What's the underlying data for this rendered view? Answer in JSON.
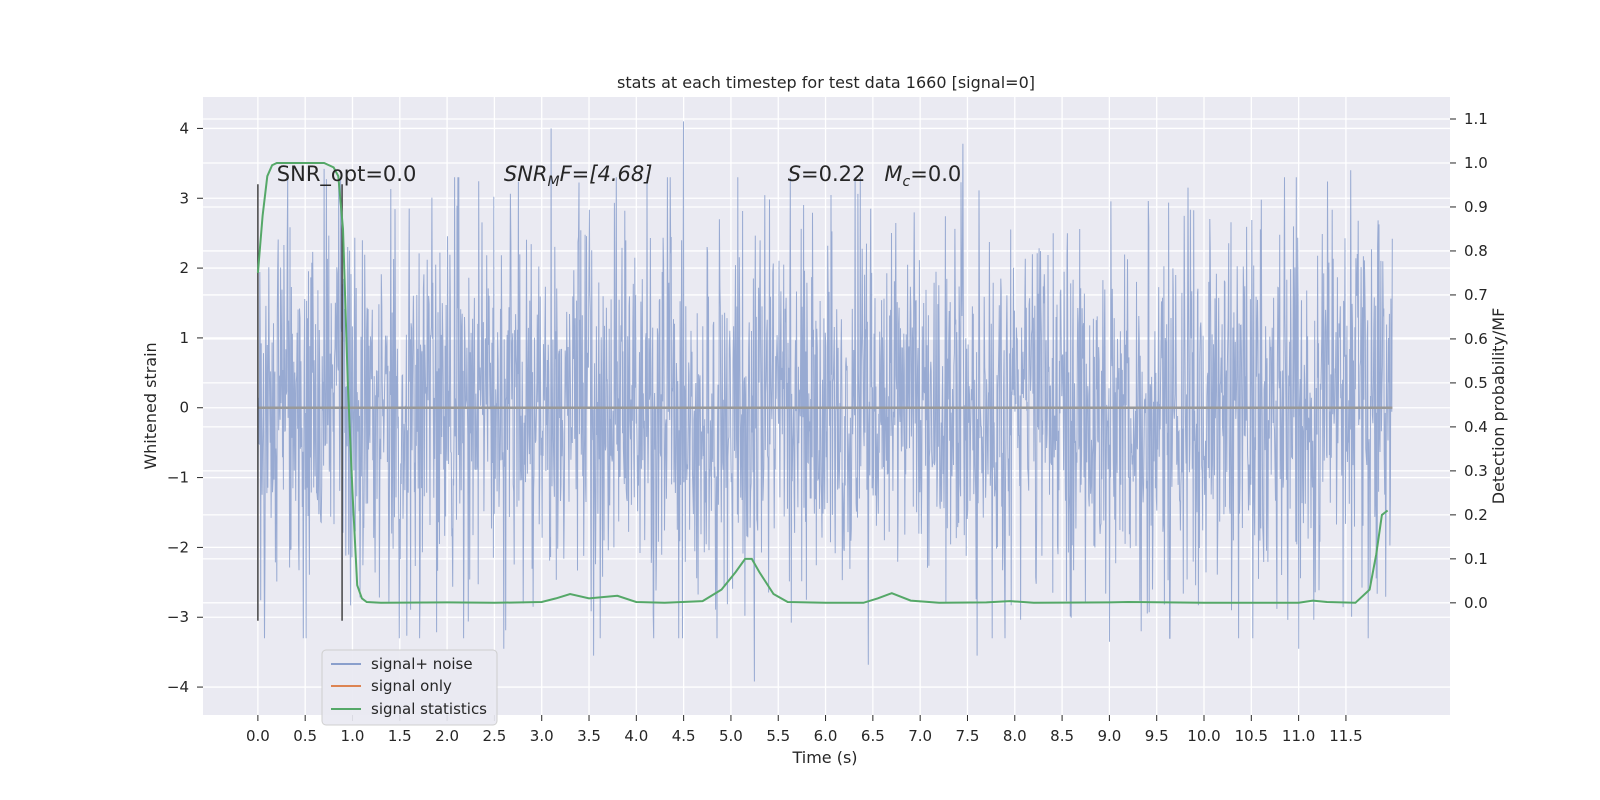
{
  "chart_data": {
    "type": "line",
    "title": "stats at each timestep for test data 1660 [signal=0]",
    "xlabel": "Time (s)",
    "ylabel": "Whitened strain",
    "y2label": "Detection probability/MF",
    "xlim": [
      -0.58,
      12.6
    ],
    "ylim": [
      -4.4,
      4.45
    ],
    "y2lim": [
      -0.255,
      1.15
    ],
    "grid": true,
    "legend_position": "lower-left",
    "xticks": [
      "0.0",
      "0.5",
      "1.0",
      "1.5",
      "2.0",
      "2.5",
      "3.0",
      "3.5",
      "4.0",
      "4.5",
      "5.0",
      "5.5",
      "6.0",
      "6.5",
      "7.0",
      "7.5",
      "8.0",
      "8.5",
      "9.0",
      "9.5",
      "10.0",
      "10.5",
      "11.0",
      "11.5"
    ],
    "yticks": [
      "−4",
      "−3",
      "−2",
      "−1",
      "0",
      "1",
      "2",
      "3",
      "4"
    ],
    "y2ticks": [
      "0.0",
      "0.1",
      "0.2",
      "0.3",
      "0.4",
      "0.5",
      "0.6",
      "0.7",
      "0.8",
      "0.9",
      "1.0",
      "1.1"
    ],
    "annotations": {
      "snr_opt": {
        "prefix": "SNR_opt=0.0",
        "x": 0.2,
        "y": 3.25
      },
      "snr_mf": {
        "var": "SNR",
        "sub": "M",
        "rest": "F=[4.68]",
        "x": 2.6,
        "y": 3.25
      },
      "s_mc": {
        "s_var": "S",
        "s_val": "=0.22",
        "m_var": "M",
        "m_sub": "c",
        "m_val": "=0.0",
        "x": 5.6,
        "y": 3.25
      }
    },
    "markers": {
      "vlines_x": [
        0.0,
        0.89
      ],
      "ymin": -3.05,
      "ymax": 3.2
    },
    "series": [
      {
        "name": "signal+ noise",
        "color": "#8a9fcc",
        "axis": "left",
        "t_range": [
          0.0,
          11.99
        ],
        "envelope_typical": 2.4,
        "peaks": [
          {
            "t": 3.1,
            "v": 4.0
          },
          {
            "t": 4.5,
            "v": 4.1
          },
          {
            "t": 7.45,
            "v": 3.78
          },
          {
            "t": 0.7,
            "v": 3.42
          },
          {
            "t": 11.55,
            "v": 3.4
          },
          {
            "t": 10.85,
            "v": 3.3
          },
          {
            "t": 5.25,
            "v": -3.92
          },
          {
            "t": 6.45,
            "v": -3.68
          },
          {
            "t": 3.55,
            "v": -3.55
          },
          {
            "t": 11.0,
            "v": -3.45
          },
          {
            "t": 0.48,
            "v": -3.3
          },
          {
            "t": 2.6,
            "v": -3.45
          },
          {
            "t": 9.0,
            "v": -3.35
          },
          {
            "t": 7.6,
            "v": -3.55
          }
        ]
      },
      {
        "name": "signal only",
        "color": "#dd8452",
        "axis": "left",
        "x": [
          0.0,
          11.99
        ],
        "y": [
          0.0,
          0.0
        ]
      },
      {
        "name": "signal statistics",
        "color": "#55a868",
        "axis": "right",
        "x": [
          0.0,
          0.05,
          0.1,
          0.15,
          0.2,
          0.3,
          0.5,
          0.7,
          0.8,
          0.85,
          0.9,
          0.95,
          1.0,
          1.05,
          1.1,
          1.15,
          1.3,
          2.0,
          2.5,
          3.0,
          3.15,
          3.3,
          3.5,
          3.8,
          4.0,
          4.3,
          4.7,
          4.9,
          5.05,
          5.15,
          5.22,
          5.3,
          5.45,
          5.6,
          6.0,
          6.4,
          6.55,
          6.7,
          6.9,
          7.2,
          7.7,
          7.95,
          8.2,
          9.0,
          9.2,
          10.0,
          11.0,
          11.15,
          11.3,
          11.6,
          11.75,
          11.82,
          11.88,
          11.94
        ],
        "y": [
          0.75,
          0.88,
          0.97,
          0.995,
          1.0,
          1.0,
          1.0,
          1.0,
          0.99,
          0.97,
          0.85,
          0.5,
          0.25,
          0.04,
          0.01,
          0.002,
          0.0,
          0.001,
          0.0,
          0.002,
          0.01,
          0.02,
          0.01,
          0.016,
          0.002,
          0.0,
          0.004,
          0.03,
          0.07,
          0.1,
          0.1,
          0.07,
          0.02,
          0.002,
          0.0,
          0.0,
          0.01,
          0.022,
          0.005,
          0.0,
          0.001,
          0.004,
          0.0,
          0.001,
          0.002,
          0.0,
          0.0,
          0.005,
          0.002,
          0.0,
          0.03,
          0.11,
          0.2,
          0.21
        ]
      }
    ]
  }
}
